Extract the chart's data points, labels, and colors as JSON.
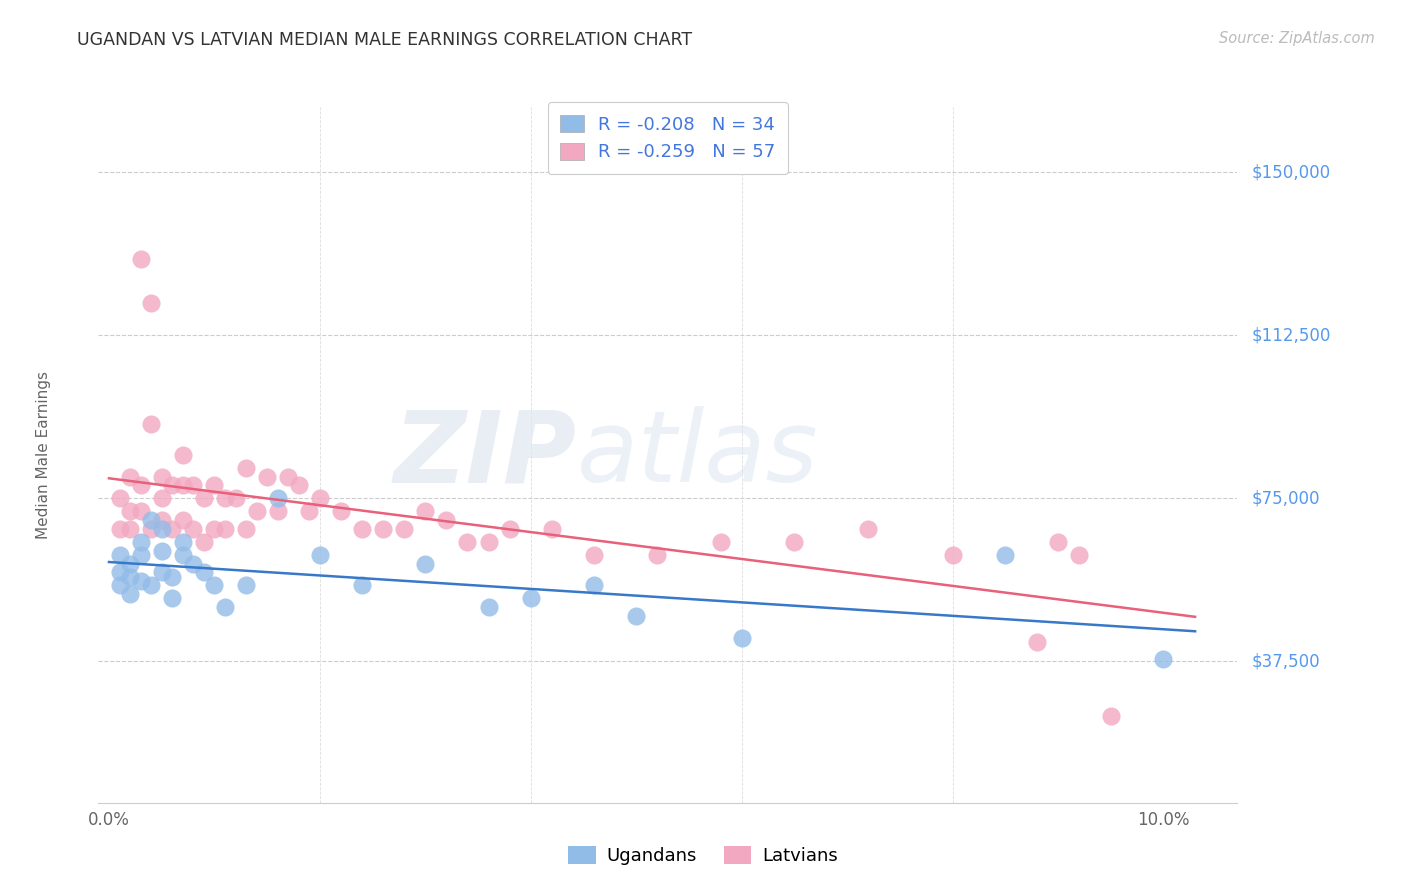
{
  "title": "UGANDAN VS LATVIAN MEDIAN MALE EARNINGS CORRELATION CHART",
  "source": "Source: ZipAtlas.com",
  "ylabel": "Median Male Earnings",
  "ytick_labels": [
    "$37,500",
    "$75,000",
    "$112,500",
    "$150,000"
  ],
  "ytick_values": [
    37500,
    75000,
    112500,
    150000
  ],
  "ymin": 5000,
  "ymax": 165000,
  "xmin": -0.001,
  "xmax": 0.107,
  "ugandan_color": "#92bce8",
  "latvian_color": "#f2a8c0",
  "ugandan_line_color": "#3878c8",
  "latvian_line_color": "#e8607a",
  "watermark_zip": "ZIP",
  "watermark_atlas": "atlas",
  "legend_r_ugandan": "-0.208",
  "legend_n_ugandan": "34",
  "legend_r_latvian": "-0.259",
  "legend_n_latvian": "57",
  "ugandan_x": [
    0.001,
    0.001,
    0.001,
    0.002,
    0.002,
    0.002,
    0.003,
    0.003,
    0.003,
    0.004,
    0.004,
    0.005,
    0.005,
    0.005,
    0.006,
    0.006,
    0.007,
    0.007,
    0.008,
    0.009,
    0.01,
    0.011,
    0.013,
    0.016,
    0.02,
    0.024,
    0.03,
    0.036,
    0.04,
    0.046,
    0.05,
    0.06,
    0.085,
    0.1
  ],
  "ugandan_y": [
    62000,
    58000,
    55000,
    60000,
    57000,
    53000,
    65000,
    62000,
    56000,
    70000,
    55000,
    68000,
    63000,
    58000,
    57000,
    52000,
    65000,
    62000,
    60000,
    58000,
    55000,
    50000,
    55000,
    75000,
    62000,
    55000,
    60000,
    50000,
    52000,
    55000,
    48000,
    43000,
    62000,
    38000
  ],
  "latvian_x": [
    0.001,
    0.001,
    0.002,
    0.002,
    0.002,
    0.003,
    0.003,
    0.003,
    0.004,
    0.004,
    0.004,
    0.005,
    0.005,
    0.005,
    0.006,
    0.006,
    0.007,
    0.007,
    0.007,
    0.008,
    0.008,
    0.009,
    0.009,
    0.01,
    0.01,
    0.011,
    0.011,
    0.012,
    0.013,
    0.013,
    0.014,
    0.015,
    0.016,
    0.017,
    0.018,
    0.019,
    0.02,
    0.022,
    0.024,
    0.026,
    0.028,
    0.03,
    0.032,
    0.034,
    0.036,
    0.038,
    0.042,
    0.046,
    0.052,
    0.058,
    0.065,
    0.072,
    0.08,
    0.088,
    0.09,
    0.092,
    0.095
  ],
  "latvian_y": [
    75000,
    68000,
    80000,
    72000,
    68000,
    130000,
    78000,
    72000,
    120000,
    92000,
    68000,
    80000,
    75000,
    70000,
    78000,
    68000,
    85000,
    78000,
    70000,
    78000,
    68000,
    75000,
    65000,
    78000,
    68000,
    75000,
    68000,
    75000,
    82000,
    68000,
    72000,
    80000,
    72000,
    80000,
    78000,
    72000,
    75000,
    72000,
    68000,
    68000,
    68000,
    72000,
    70000,
    65000,
    65000,
    68000,
    68000,
    62000,
    62000,
    65000,
    65000,
    68000,
    62000,
    42000,
    65000,
    62000,
    25000
  ]
}
